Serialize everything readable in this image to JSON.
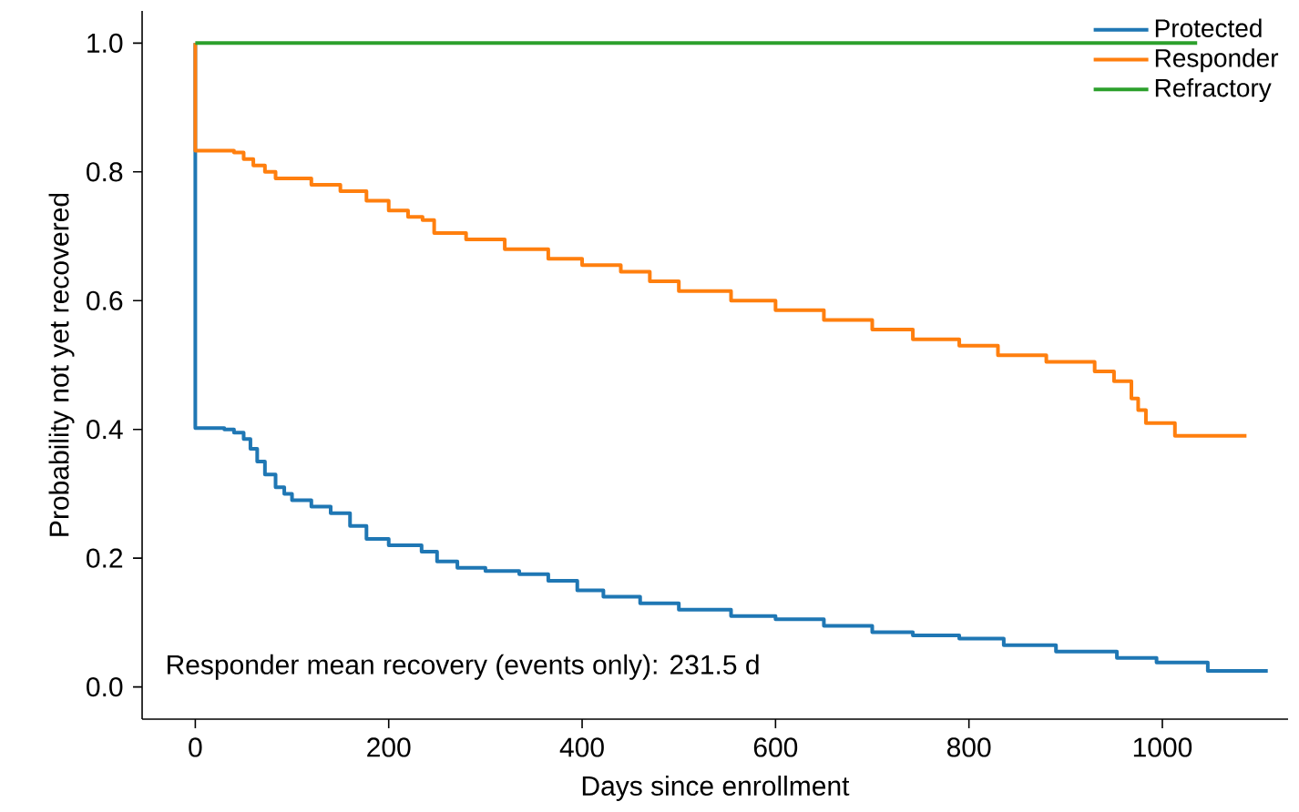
{
  "chart_data": {
    "type": "step",
    "xlabel": "Days since enrollment",
    "ylabel": "Probability not yet recovered",
    "xlim": [
      -55,
      1130
    ],
    "ylim": [
      -0.05,
      1.05
    ],
    "xticks": [
      0,
      200,
      400,
      600,
      800,
      1000
    ],
    "yticks": [
      {
        "value": 0,
        "label": "0.0"
      },
      {
        "value": 0.2,
        "label": "0.2"
      },
      {
        "value": 0.4,
        "label": "0.4"
      },
      {
        "value": 0.6,
        "label": "0.6"
      },
      {
        "value": 0.8,
        "label": "0.8"
      },
      {
        "value": 1,
        "label": "1.0"
      }
    ],
    "legend": "top right",
    "grid": false,
    "annotations": [
      "Responder mean recovery (events only): 231.5 d"
    ],
    "series": [
      {
        "name": "Protected",
        "color": "#1f77b4",
        "x": [
          0,
          0,
          30,
          40,
          50,
          57,
          64,
          72,
          83,
          92,
          100,
          120,
          140,
          160,
          177,
          200,
          234,
          250,
          271,
          300,
          335,
          365,
          395,
          422,
          460,
          500,
          554,
          600,
          650,
          700,
          742,
          790,
          836,
          890,
          953,
          994,
          1047,
          1109
        ],
        "values": [
          1.0,
          0.402,
          0.4,
          0.395,
          0.385,
          0.37,
          0.35,
          0.33,
          0.31,
          0.3,
          0.29,
          0.28,
          0.27,
          0.25,
          0.23,
          0.22,
          0.21,
          0.195,
          0.185,
          0.18,
          0.175,
          0.165,
          0.15,
          0.14,
          0.13,
          0.12,
          0.11,
          0.105,
          0.095,
          0.085,
          0.08,
          0.075,
          0.065,
          0.055,
          0.045,
          0.038,
          0.025,
          0.025
        ]
      },
      {
        "name": "Responder",
        "color": "#ff7f0e",
        "x": [
          0,
          0,
          40,
          50,
          60,
          72,
          83,
          120,
          150,
          177,
          200,
          220,
          235,
          247,
          280,
          320,
          365,
          400,
          440,
          470,
          500,
          554,
          600,
          650,
          700,
          742,
          790,
          830,
          880,
          930,
          950,
          968,
          975,
          983,
          1013,
          1087
        ],
        "values": [
          1.0,
          0.833,
          0.83,
          0.82,
          0.81,
          0.8,
          0.79,
          0.78,
          0.77,
          0.755,
          0.74,
          0.73,
          0.725,
          0.705,
          0.695,
          0.68,
          0.665,
          0.655,
          0.645,
          0.63,
          0.615,
          0.6,
          0.585,
          0.57,
          0.555,
          0.54,
          0.53,
          0.515,
          0.505,
          0.49,
          0.475,
          0.448,
          0.43,
          0.41,
          0.39,
          0.39
        ]
      },
      {
        "name": "Refractory",
        "color": "#2ca02c",
        "x": [
          0,
          1036
        ],
        "values": [
          1.0,
          1.0
        ]
      }
    ]
  }
}
